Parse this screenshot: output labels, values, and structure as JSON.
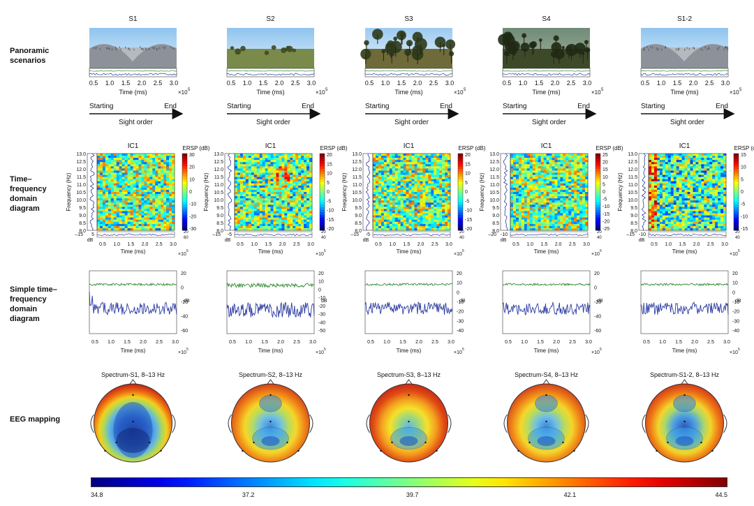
{
  "row_labels": {
    "panoramic": [
      "Panoramic",
      "scenarios"
    ],
    "tf": [
      "Time–",
      "frequency",
      "domain",
      "diagram"
    ],
    "simple": [
      "Simple time–",
      "frequency",
      "domain",
      "diagram"
    ],
    "eeg": "EEG mapping"
  },
  "columns": [
    {
      "id": "S1",
      "ersp_ticks": [
        "30",
        "20",
        "10",
        "0",
        "-10",
        "-20",
        "-30"
      ],
      "spectrum_title": "Spectrum-S1, 8–13 Hz",
      "bottom_db": [
        "–15",
        "5",
        "dB"
      ],
      "right_db": [
        "20",
        "dB",
        "60"
      ],
      "simple_ticks": [
        "20",
        "0",
        "-20",
        "-40",
        "-60"
      ],
      "pano": "snow",
      "scalp": "blue"
    },
    {
      "id": "S2",
      "ersp_ticks": [
        "20",
        "15",
        "10",
        "5",
        "0",
        "-5",
        "-10",
        "-15",
        "-20"
      ],
      "spectrum_title": "Spectrum-S2, 8–13 Hz",
      "bottom_db": [
        "–15",
        "-5",
        "dB"
      ],
      "right_db": [
        "20",
        "dB",
        "40"
      ],
      "simple_ticks": [
        "20",
        "10",
        "0",
        "-10",
        "-20",
        "-30",
        "-40",
        "-50"
      ],
      "pano": "grass",
      "scalp": "redtop"
    },
    {
      "id": "S3",
      "ersp_ticks": [
        "20",
        "15",
        "10",
        "5",
        "0",
        "-5",
        "-10",
        "-15",
        "-20"
      ],
      "spectrum_title": "Spectrum-S3, 8–13 Hz",
      "bottom_db": [
        "–15",
        "-5",
        "dB"
      ],
      "right_db": [
        "20",
        "dB",
        "40"
      ],
      "simple_ticks": [
        "20",
        "10",
        "0",
        "-10",
        "-20",
        "-30",
        "-40"
      ],
      "pano": "forest",
      "scalp": "red"
    },
    {
      "id": "S4",
      "ersp_ticks": [
        "25",
        "20",
        "15",
        "10",
        "5",
        "0",
        "-5",
        "-10",
        "-15",
        "-20",
        "-25"
      ],
      "spectrum_title": "Spectrum-S4, 8–13 Hz",
      "bottom_db": [
        "–20",
        "-10",
        "dB"
      ],
      "right_db": [
        "20",
        "dB",
        "40"
      ],
      "simple_ticks": [
        "20",
        "0",
        "-20",
        "-40",
        "-60"
      ],
      "pano": "darkforest",
      "scalp": "redtop"
    },
    {
      "id": "S1-2",
      "ersp_ticks": [
        "15",
        "10",
        "5",
        "0",
        "-5",
        "-10",
        "-15"
      ],
      "spectrum_title": "Spectrum-S1-2, 8–13 Hz",
      "bottom_db": [
        "–15",
        "-10",
        "dB"
      ],
      "right_db": [
        "20",
        "dB",
        "40"
      ],
      "simple_ticks": [
        "20",
        "10",
        "0",
        "-10",
        "-20",
        "-30",
        "-40"
      ],
      "pano": "snow",
      "scalp": "redtop2"
    }
  ],
  "common": {
    "x_ticks": [
      "0.5",
      "1.0",
      "1.5",
      "2.0",
      "2.5",
      "3.0"
    ],
    "time_label": "Time (ms)",
    "x_exp": "×10",
    "x_exp_power": "5",
    "starting": "Starting",
    "end": "End",
    "sight_order": "Sight order",
    "ic": "IC1",
    "ersp": "ERSP (dB)",
    "freq_label": "Frequency (Hz)",
    "freq_ticks": [
      "13.0",
      "12.5",
      "12.0",
      "11.5",
      "11.0",
      "10.5",
      "10.0",
      "9.5",
      "9.0",
      "8.5",
      "8.0"
    ],
    "simple_db": "dB"
  },
  "colorbar": {
    "ticks": [
      "34.8",
      "37.2",
      "39.7",
      "42.1",
      "44.5"
    ],
    "min": 34.8,
    "max": 44.5
  }
}
